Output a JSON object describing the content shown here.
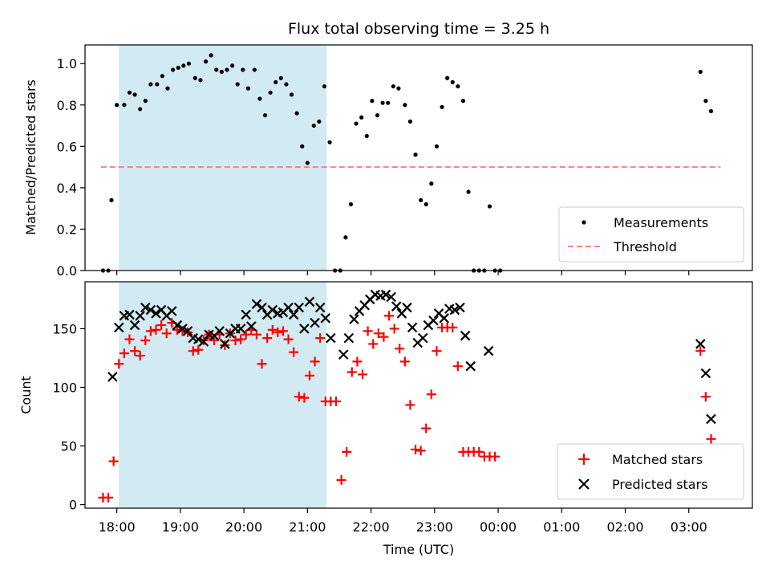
{
  "chart_data": {
    "type": "scatter",
    "title": "Flux total observing time = 3.25 h",
    "xlabel": "Time (UTC)",
    "x_unit": "hours after 17:00 UTC on the plot day",
    "x_tick_labels": [
      "18:00",
      "19:00",
      "20:00",
      "21:00",
      "22:00",
      "23:00",
      "00:00",
      "01:00",
      "02:00",
      "03:00"
    ],
    "x_range": [
      "17:30",
      "04:00"
    ],
    "shaded_interval": {
      "start": "18:02",
      "end": "21:18",
      "color": "#add8e6"
    },
    "panels": [
      {
        "ylabel": "Matched/Predicted stars",
        "ylim": [
          0,
          1.09
        ],
        "y_ticks": [
          0.0,
          0.2,
          0.4,
          0.6,
          0.8,
          1.0
        ],
        "y_tick_labels": [
          "0.0",
          "0.2",
          "0.4",
          "0.6",
          "0.8",
          "1.0"
        ],
        "legend": {
          "placement": "lower right",
          "entries": [
            "Measurements",
            "Threshold"
          ]
        },
        "threshold": {
          "name": "Threshold",
          "value": 0.5,
          "x_range": [
            "17:45",
            "03:30"
          ],
          "color": "#ff7f7f"
        },
        "series": [
          {
            "name": "Measurements",
            "marker": "dot",
            "color": "#000000",
            "points": [
              [
                "17:47",
                0.0
              ],
              [
                "17:52",
                0.0
              ],
              [
                "17:55",
                0.34
              ],
              [
                "18:00",
                0.8
              ],
              [
                "18:07",
                0.8
              ],
              [
                "18:12",
                0.86
              ],
              [
                "18:17",
                0.85
              ],
              [
                "18:22",
                0.78
              ],
              [
                "18:27",
                0.82
              ],
              [
                "18:32",
                0.9
              ],
              [
                "18:38",
                0.9
              ],
              [
                "18:43",
                0.94
              ],
              [
                "18:48",
                0.88
              ],
              [
                "18:53",
                0.97
              ],
              [
                "18:58",
                0.98
              ],
              [
                "19:03",
                0.99
              ],
              [
                "19:08",
                1.0
              ],
              [
                "19:14",
                0.93
              ],
              [
                "19:19",
                0.92
              ],
              [
                "19:24",
                1.01
              ],
              [
                "19:29",
                1.04
              ],
              [
                "19:34",
                0.97
              ],
              [
                "19:39",
                0.96
              ],
              [
                "19:44",
                0.97
              ],
              [
                "19:49",
                0.99
              ],
              [
                "19:54",
                0.9
              ],
              [
                "19:59",
                0.97
              ],
              [
                "20:04",
                0.88
              ],
              [
                "20:10",
                0.97
              ],
              [
                "20:15",
                0.83
              ],
              [
                "20:20",
                0.75
              ],
              [
                "20:25",
                0.86
              ],
              [
                "20:30",
                0.91
              ],
              [
                "20:35",
                0.93
              ],
              [
                "20:40",
                0.9
              ],
              [
                "20:45",
                0.85
              ],
              [
                "20:50",
                0.76
              ],
              [
                "20:55",
                0.6
              ],
              [
                "21:00",
                0.52
              ],
              [
                "21:06",
                0.7
              ],
              [
                "21:11",
                0.72
              ],
              [
                "21:16",
                0.89
              ],
              [
                "21:21",
                0.62
              ],
              [
                "21:26",
                0.0
              ],
              [
                "21:31",
                0.0
              ],
              [
                "21:36",
                0.16
              ],
              [
                "21:41",
                0.32
              ],
              [
                "21:46",
                0.71
              ],
              [
                "21:51",
                0.74
              ],
              [
                "21:56",
                0.65
              ],
              [
                "22:01",
                0.82
              ],
              [
                "22:06",
                0.75
              ],
              [
                "22:11",
                0.81
              ],
              [
                "22:16",
                0.81
              ],
              [
                "22:21",
                0.89
              ],
              [
                "22:26",
                0.88
              ],
              [
                "22:32",
                0.8
              ],
              [
                "22:37",
                0.72
              ],
              [
                "22:42",
                0.56
              ],
              [
                "22:47",
                0.34
              ],
              [
                "22:52",
                0.32
              ],
              [
                "22:57",
                0.42
              ],
              [
                "23:02",
                0.6
              ],
              [
                "23:07",
                0.79
              ],
              [
                "23:12",
                0.93
              ],
              [
                "23:17",
                0.91
              ],
              [
                "23:22",
                0.89
              ],
              [
                "23:27",
                0.82
              ],
              [
                "23:32",
                0.38
              ],
              [
                "23:37",
                0.0
              ],
              [
                "23:42",
                0.0
              ],
              [
                "23:47",
                0.0
              ],
              [
                "23:52",
                0.31
              ],
              [
                "23:57",
                0.0
              ],
              [
                "00:02",
                0.0
              ],
              [
                "03:11",
                0.96
              ],
              [
                "03:16",
                0.82
              ],
              [
                "03:21",
                0.77
              ]
            ]
          }
        ]
      },
      {
        "ylabel": "Count",
        "ylim": [
          -3,
          190
        ],
        "y_ticks": [
          0,
          50,
          100,
          150
        ],
        "y_tick_labels": [
          "0",
          "50",
          "100",
          "150"
        ],
        "legend": {
          "placement": "lower right",
          "entries": [
            "Matched stars",
            "Predicted stars"
          ]
        },
        "series": [
          {
            "name": "Matched stars",
            "marker": "plus",
            "color": "#ff0000",
            "points": [
              [
                "17:47",
                6
              ],
              [
                "17:52",
                6
              ],
              [
                "17:57",
                37
              ],
              [
                "18:02",
                120
              ],
              [
                "18:07",
                129
              ],
              [
                "18:12",
                141
              ],
              [
                "18:17",
                131
              ],
              [
                "18:22",
                127
              ],
              [
                "18:27",
                140
              ],
              [
                "18:32",
                148
              ],
              [
                "18:37",
                149
              ],
              [
                "18:42",
                153
              ],
              [
                "18:47",
                146
              ],
              [
                "18:52",
                155
              ],
              [
                "18:57",
                149
              ],
              [
                "19:02",
                148
              ],
              [
                "19:07",
                147
              ],
              [
                "19:12",
                131
              ],
              [
                "19:17",
                132
              ],
              [
                "19:22",
                140
              ],
              [
                "19:27",
                145
              ],
              [
                "19:32",
                140
              ],
              [
                "19:37",
                145
              ],
              [
                "19:42",
                136
              ],
              [
                "19:47",
                146
              ],
              [
                "19:52",
                140
              ],
              [
                "19:57",
                141
              ],
              [
                "20:02",
                145
              ],
              [
                "20:07",
                149
              ],
              [
                "20:12",
                145
              ],
              [
                "20:17",
                120
              ],
              [
                "20:22",
                142
              ],
              [
                "20:27",
                149
              ],
              [
                "20:32",
                147
              ],
              [
                "20:37",
                148
              ],
              [
                "20:42",
                141
              ],
              [
                "20:47",
                130
              ],
              [
                "20:52",
                92
              ],
              [
                "20:57",
                91
              ],
              [
                "21:02",
                110
              ],
              [
                "21:07",
                122
              ],
              [
                "21:12",
                142
              ],
              [
                "21:17",
                88
              ],
              [
                "21:22",
                88
              ],
              [
                "21:27",
                88
              ],
              [
                "21:32",
                21
              ],
              [
                "21:37",
                45
              ],
              [
                "21:42",
                113
              ],
              [
                "21:47",
                122
              ],
              [
                "21:52",
                111
              ],
              [
                "21:57",
                148
              ],
              [
                "22:02",
                137
              ],
              [
                "22:07",
                146
              ],
              [
                "22:12",
                143
              ],
              [
                "22:17",
                161
              ],
              [
                "22:22",
                150
              ],
              [
                "22:27",
                133
              ],
              [
                "22:32",
                122
              ],
              [
                "22:37",
                85
              ],
              [
                "22:42",
                47
              ],
              [
                "22:47",
                46
              ],
              [
                "22:52",
                65
              ],
              [
                "22:57",
                94
              ],
              [
                "23:02",
                131
              ],
              [
                "23:07",
                151
              ],
              [
                "23:12",
                151
              ],
              [
                "23:17",
                151
              ],
              [
                "23:22",
                118
              ],
              [
                "23:27",
                45
              ],
              [
                "23:32",
                45
              ],
              [
                "23:37",
                45
              ],
              [
                "23:42",
                45
              ],
              [
                "23:47",
                41
              ],
              [
                "23:52",
                41
              ],
              [
                "23:57",
                41
              ],
              [
                "03:11",
                131
              ],
              [
                "03:16",
                92
              ],
              [
                "03:21",
                56
              ]
            ]
          },
          {
            "name": "Predicted stars",
            "marker": "x",
            "color": "#000000",
            "points": [
              [
                "17:56",
                109
              ],
              [
                "18:02",
                151
              ],
              [
                "18:07",
                161
              ],
              [
                "18:12",
                162
              ],
              [
                "18:17",
                153
              ],
              [
                "18:22",
                161
              ],
              [
                "18:27",
                168
              ],
              [
                "18:32",
                166
              ],
              [
                "18:37",
                163
              ],
              [
                "18:42",
                166
              ],
              [
                "18:47",
                161
              ],
              [
                "18:52",
                165
              ],
              [
                "18:57",
                153
              ],
              [
                "19:02",
                150
              ],
              [
                "19:07",
                148
              ],
              [
                "19:12",
                142
              ],
              [
                "19:17",
                141
              ],
              [
                "19:22",
                139
              ],
              [
                "19:27",
                145
              ],
              [
                "19:32",
                144
              ],
              [
                "19:37",
                148
              ],
              [
                "19:42",
                137
              ],
              [
                "19:47",
                146
              ],
              [
                "19:52",
                150
              ],
              [
                "19:57",
                150
              ],
              [
                "20:02",
                162
              ],
              [
                "20:07",
                152
              ],
              [
                "20:12",
                171
              ],
              [
                "20:17",
                168
              ],
              [
                "20:22",
                162
              ],
              [
                "20:27",
                166
              ],
              [
                "20:32",
                163
              ],
              [
                "20:37",
                164
              ],
              [
                "20:42",
                168
              ],
              [
                "20:47",
                162
              ],
              [
                "20:52",
                168
              ],
              [
                "20:57",
                150
              ],
              [
                "21:02",
                173
              ],
              [
                "21:07",
                155
              ],
              [
                "21:12",
                168
              ],
              [
                "21:17",
                159
              ],
              [
                "21:22",
                142
              ],
              [
                "21:34",
                128
              ],
              [
                "21:39",
                142
              ],
              [
                "21:44",
                158
              ],
              [
                "21:49",
                165
              ],
              [
                "21:54",
                170
              ],
              [
                "21:59",
                175
              ],
              [
                "22:04",
                179
              ],
              [
                "22:09",
                178
              ],
              [
                "22:14",
                179
              ],
              [
                "22:19",
                177
              ],
              [
                "22:24",
                169
              ],
              [
                "22:29",
                163
              ],
              [
                "22:34",
                168
              ],
              [
                "22:39",
                151
              ],
              [
                "22:44",
                138
              ],
              [
                "22:49",
                142
              ],
              [
                "22:54",
                153
              ],
              [
                "22:59",
                157
              ],
              [
                "23:04",
                163
              ],
              [
                "23:09",
                159
              ],
              [
                "23:14",
                167
              ],
              [
                "23:19",
                166
              ],
              [
                "23:24",
                168
              ],
              [
                "23:29",
                144
              ],
              [
                "23:34",
                118
              ],
              [
                "23:51",
                131
              ],
              [
                "03:11",
                137
              ],
              [
                "03:16",
                112
              ],
              [
                "03:21",
                73
              ]
            ]
          }
        ]
      }
    ]
  }
}
